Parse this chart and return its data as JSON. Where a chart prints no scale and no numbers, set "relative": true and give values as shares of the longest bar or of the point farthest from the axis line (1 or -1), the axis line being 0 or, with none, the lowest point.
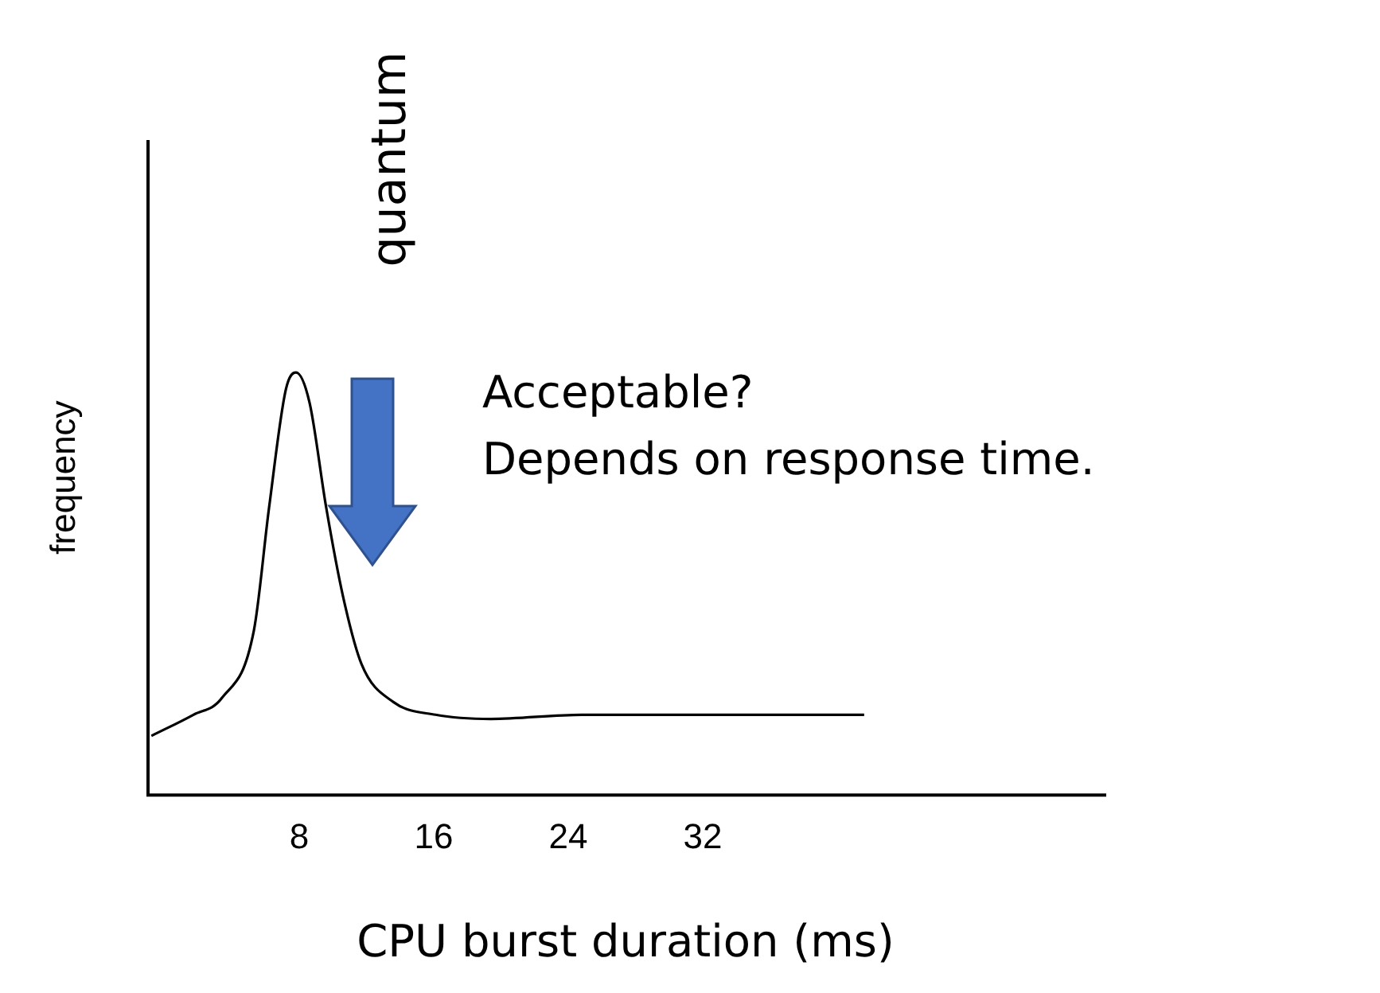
{
  "chart_data": {
    "type": "line",
    "xlabel": "CPU burst duration (ms)",
    "ylabel": "frequency",
    "relative": true,
    "legend": false,
    "grid": false,
    "marker": "none",
    "xlim": [
      -1,
      56
    ],
    "xticks": [
      8,
      16,
      24,
      32
    ],
    "x": [
      -0.8,
      1.7,
      3.4,
      5.3,
      6.2,
      7.2,
      7.8,
      8.6,
      9.6,
      10.6,
      11.7,
      13.6,
      16.1,
      19.4,
      24.8,
      29.6,
      41.6
    ],
    "series": [
      {
        "color": "#000000",
        "values": [
          0.14,
          0.19,
          0.23,
          0.39,
          0.68,
          0.96,
          1,
          0.93,
          0.68,
          0.47,
          0.31,
          0.22,
          0.19,
          0.18,
          0.19,
          0.19,
          0.19
        ]
      }
    ],
    "annotations": [
      "quantum",
      "Acceptable?\nDepends on response time."
    ]
  }
}
